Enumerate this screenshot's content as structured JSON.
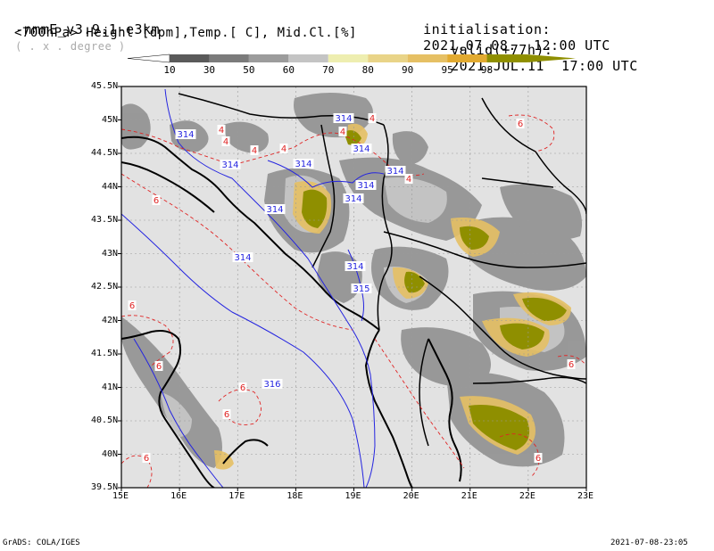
{
  "header": {
    "model": "-nmmE_v3.9.1-e3km",
    "grid_note": "( . x . degree )",
    "init_label": "initialisation:",
    "init_value": "2021.07.08.  12:00 UTC",
    "product": "<700hPa> Height [dpm],Temp.[ C], Mid.Cl.[%]",
    "valid_label": "valid(+77h):",
    "valid_value": "2021.JUL.11  17:00 UTC"
  },
  "colorbar": {
    "labels": [
      "10",
      "30",
      "50",
      "60",
      "70",
      "80",
      "90",
      "95",
      "98"
    ],
    "colors": [
      "#5a5a5a",
      "#7b7b7b",
      "#9c9c9c",
      "#c4c4c4",
      "#eeeeb0",
      "#e9d488",
      "#e6c064",
      "#e2aa30",
      "#8f8f00"
    ],
    "below_color": "#ffffff"
  },
  "map": {
    "background": "#e2e2e2",
    "lon_labels": [
      "15E",
      "16E",
      "17E",
      "18E",
      "19E",
      "20E",
      "21E",
      "22E",
      "23E"
    ],
    "lat_labels": [
      "45.5N",
      "45N",
      "44.5N",
      "44N",
      "43.5N",
      "43N",
      "42.5N",
      "42N",
      "41.5N",
      "41N",
      "40.5N",
      "40N",
      "39.5N"
    ],
    "height_contour_labels": [
      "314",
      "314",
      "314",
      "314",
      "314",
      "314",
      "314",
      "314",
      "314",
      "314",
      "314",
      "315",
      "316"
    ],
    "temp_contour_labels": [
      "4",
      "4",
      "4",
      "4",
      "4",
      "4",
      "4",
      "6",
      "6",
      "6",
      "6",
      "6",
      "6",
      "6",
      "6",
      "6"
    ],
    "colors": {
      "height": "#2424e0",
      "temp": "#e02424",
      "coast": "#000000",
      "cloud": "#8f8f00"
    }
  },
  "footer": {
    "left": "GrADS: COLA/IGES",
    "right": "2021-07-08-23:05"
  }
}
